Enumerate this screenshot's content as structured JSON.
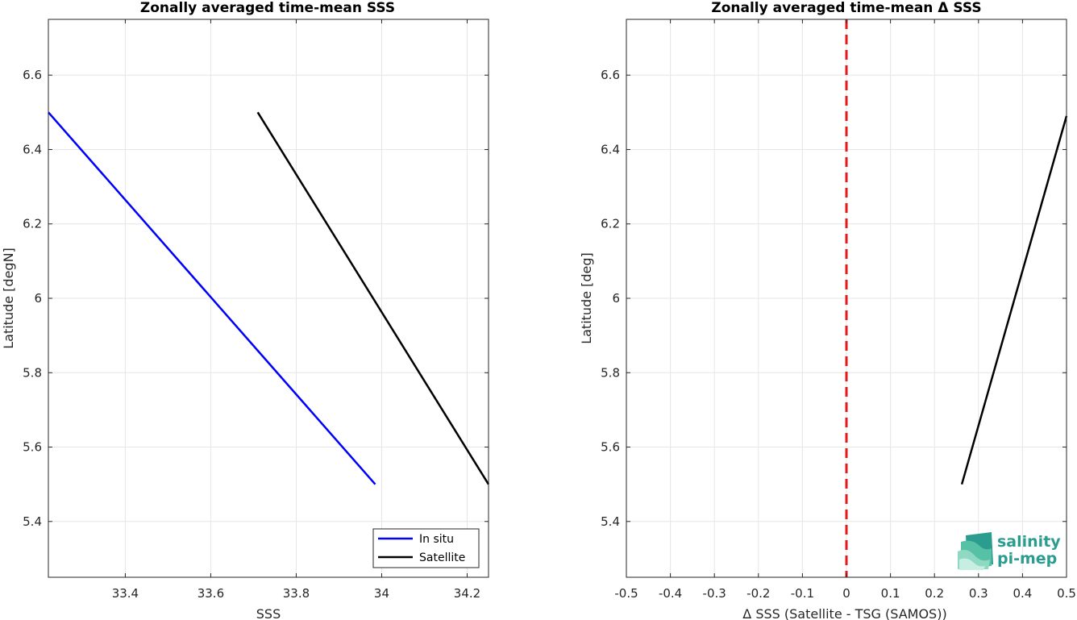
{
  "chart_data": [
    {
      "type": "line",
      "title": "Zonally averaged time-mean SSS",
      "xlabel": "SSS",
      "ylabel": "Latitude [degN]",
      "xlim": [
        33.22,
        34.25
      ],
      "ylim": [
        5.25,
        6.75
      ],
      "xticks": [
        "33.4",
        "33.6",
        "33.8",
        "34",
        "34.2"
      ],
      "yticks": [
        "5.4",
        "5.6",
        "5.8",
        "6",
        "6.2",
        "6.4",
        "6.6"
      ],
      "xtick_values": [
        33.4,
        33.6,
        33.8,
        34.0,
        34.2
      ],
      "ytick_values": [
        5.4,
        5.6,
        5.8,
        6.0,
        6.2,
        6.4,
        6.6
      ],
      "grid": true,
      "legend": "bottom-right",
      "series": [
        {
          "name": "In situ",
          "color": "#0000ff",
          "x": [
            33.22,
            33.985
          ],
          "y": [
            6.5,
            5.5
          ]
        },
        {
          "name": "Satellite",
          "color": "#000000",
          "x": [
            33.71,
            34.25
          ],
          "y": [
            6.5,
            5.5
          ]
        }
      ]
    },
    {
      "type": "line",
      "title": "Zonally averaged time-mean Δ SSS",
      "xlabel": "Δ SSS (Satellite - TSG (SAMOS))",
      "ylabel": "Latitude [deg]",
      "xlim": [
        -0.5,
        0.5
      ],
      "ylim": [
        5.25,
        6.75
      ],
      "xticks": [
        "-0.5",
        "-0.4",
        "-0.3",
        "-0.2",
        "-0.1",
        "0",
        "0.1",
        "0.2",
        "0.3",
        "0.4",
        "0.5"
      ],
      "yticks": [
        "5.4",
        "5.6",
        "5.8",
        "6",
        "6.2",
        "6.4",
        "6.6"
      ],
      "xtick_values": [
        -0.5,
        -0.4,
        -0.3,
        -0.2,
        -0.1,
        0,
        0.1,
        0.2,
        0.3,
        0.4,
        0.5
      ],
      "ytick_values": [
        5.4,
        5.6,
        5.8,
        6.0,
        6.2,
        6.4,
        6.6
      ],
      "grid": true,
      "reference_line": {
        "x": 0,
        "color": "#e31a1c",
        "style": "dashed"
      },
      "series": [
        {
          "color": "#000000",
          "x": [
            0.262,
            0.5
          ],
          "y": [
            5.5,
            6.49
          ]
        }
      ]
    }
  ],
  "logo": {
    "line1": "salinity",
    "line2": "pi-mep"
  }
}
